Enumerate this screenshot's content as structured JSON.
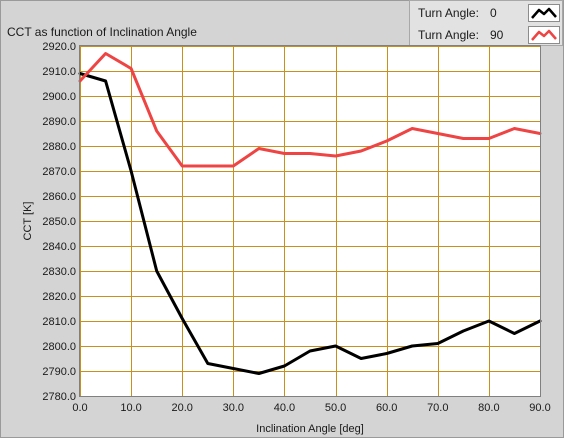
{
  "chart_data": {
    "type": "line",
    "title": "CCT as function of Inclination Angle",
    "xlabel": "Inclination Angle [deg]",
    "ylabel": "CCT [K]",
    "xlim": [
      0,
      90
    ],
    "ylim": [
      2780,
      2920
    ],
    "x_ticks": [
      "0.0",
      "10.0",
      "20.0",
      "30.0",
      "40.0",
      "50.0",
      "60.0",
      "70.0",
      "80.0",
      "90.0"
    ],
    "x_tick_values": [
      0,
      10,
      20,
      30,
      40,
      50,
      60,
      70,
      80,
      90
    ],
    "y_ticks": [
      "2780.0",
      "2790.0",
      "2800.0",
      "2810.0",
      "2820.0",
      "2830.0",
      "2840.0",
      "2850.0",
      "2860.0",
      "2870.0",
      "2880.0",
      "2890.0",
      "2900.0",
      "2910.0",
      "2920.0"
    ],
    "y_tick_values": [
      2780,
      2790,
      2800,
      2810,
      2820,
      2830,
      2840,
      2850,
      2860,
      2870,
      2880,
      2890,
      2900,
      2910,
      2920
    ],
    "grid": true,
    "legend_position": "top-right",
    "x": [
      0,
      5,
      10,
      15,
      20,
      25,
      30,
      35,
      40,
      45,
      50,
      55,
      60,
      65,
      70,
      75,
      80,
      85,
      90
    ],
    "series": [
      {
        "legend_label": "Turn Angle:",
        "legend_value": "0",
        "color": "#000000",
        "values": [
          2909,
          2906,
          2870,
          2830,
          2811,
          2793,
          2791,
          2789,
          2792,
          2798,
          2800,
          2795,
          2797,
          2800,
          2801,
          2806,
          2810,
          2805,
          2810
        ]
      },
      {
        "legend_label": "Turn Angle:",
        "legend_value": "90",
        "color": "#ee4444",
        "values": [
          2906,
          2917,
          2911,
          2886,
          2872,
          2872,
          2872,
          2879,
          2877,
          2877,
          2876,
          2878,
          2882,
          2887,
          2885,
          2883,
          2883,
          2887,
          2885
        ]
      }
    ]
  },
  "colors": {
    "plot_background": "#ffffff",
    "grid_line": "#c8901a",
    "frame_background": "#d4d4d4"
  }
}
